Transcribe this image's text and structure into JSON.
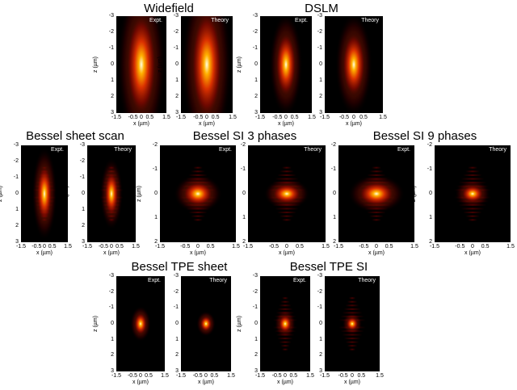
{
  "titles": {
    "widefield": "Widefield",
    "dslm": "DSLM",
    "bessel_sheet_scan": "Bessel sheet scan",
    "bessel_si_3": "Bessel SI 3 phases",
    "bessel_si_9": "Bessel SI 9 phases",
    "bessel_tpe_sheet": "Bessel TPE sheet",
    "bessel_tpe_si": "Bessel TPE SI"
  },
  "labels": {
    "expt": "Expt.",
    "theory": "Theory"
  },
  "axes": {
    "xlabel": "x (µm)",
    "ylabel": "z (µm)",
    "xticks": [
      "-1.5",
      "-0.5",
      "0",
      "0.5",
      "1.5"
    ],
    "zticks3": [
      "-3",
      "-2",
      "-1",
      "0",
      "1",
      "2",
      "3"
    ],
    "zticks2": [
      "-2",
      "-1",
      "0",
      "1",
      "2"
    ]
  },
  "chart_data": {
    "type": "heatmap",
    "colormap": [
      "#000000",
      "#7a0000",
      "#e03000",
      "#ffb000",
      "#ffffe0"
    ],
    "panels": [
      {
        "group": "Widefield",
        "label": "Expt.",
        "xlim": [
          -1.5,
          1.5
        ],
        "zlim": [
          -3,
          3
        ],
        "spot": {
          "sx": 0.45,
          "sz": 1.6
        }
      },
      {
        "group": "Widefield",
        "label": "Theory",
        "xlim": [
          -1.5,
          1.5
        ],
        "zlim": [
          -3,
          3
        ],
        "spot": {
          "sx": 0.45,
          "sz": 1.7
        }
      },
      {
        "group": "DSLM",
        "label": "Expt.",
        "xlim": [
          -1.5,
          1.5
        ],
        "zlim": [
          -3,
          3
        ],
        "spot": {
          "sx": 0.3,
          "sz": 1.0
        }
      },
      {
        "group": "DSLM",
        "label": "Theory",
        "xlim": [
          -1.5,
          1.5
        ],
        "zlim": [
          -3,
          3
        ],
        "spot": {
          "sx": 0.3,
          "sz": 1.0
        }
      },
      {
        "group": "Bessel sheet scan",
        "label": "Expt.",
        "xlim": [
          -1.5,
          1.5
        ],
        "zlim": [
          -3,
          3
        ],
        "spot": {
          "sx": 0.25,
          "sz": 0.9
        }
      },
      {
        "group": "Bessel sheet scan",
        "label": "Theory",
        "xlim": [
          -1.5,
          1.5
        ],
        "zlim": [
          -3,
          3
        ],
        "spot": {
          "sx": 0.22,
          "sz": 0.7
        }
      },
      {
        "group": "Bessel SI 3 phases",
        "label": "Expt.",
        "xlim": [
          -1.5,
          1.5
        ],
        "zlim": [
          -2,
          2
        ],
        "spot": {
          "sx": 0.3,
          "sz": 0.25
        }
      },
      {
        "group": "Bessel SI 3 phases",
        "label": "Theory",
        "xlim": [
          -1.5,
          1.5
        ],
        "zlim": [
          -2,
          2
        ],
        "spot": {
          "sx": 0.28,
          "sz": 0.2
        }
      },
      {
        "group": "Bessel SI 9 phases",
        "label": "Expt.",
        "xlim": [
          -1.5,
          1.5
        ],
        "zlim": [
          -2,
          2
        ],
        "spot": {
          "sx": 0.35,
          "sz": 0.25
        }
      },
      {
        "group": "Bessel SI 9 phases",
        "label": "Theory",
        "xlim": [
          -1.5,
          1.5
        ],
        "zlim": [
          -2,
          2
        ],
        "spot": {
          "sx": 0.22,
          "sz": 0.18
        }
      },
      {
        "group": "Bessel TPE sheet",
        "label": "Expt.",
        "xlim": [
          -1.5,
          1.5
        ],
        "zlim": [
          -3,
          3
        ],
        "spot": {
          "sx": 0.2,
          "sz": 0.35
        }
      },
      {
        "group": "Bessel TPE sheet",
        "label": "Theory",
        "xlim": [
          -1.5,
          1.5
        ],
        "zlim": [
          -3,
          3
        ],
        "spot": {
          "sx": 0.18,
          "sz": 0.25
        }
      },
      {
        "group": "Bessel TPE SI",
        "label": "Expt.",
        "xlim": [
          -1.5,
          1.5
        ],
        "zlim": [
          -3,
          3
        ],
        "spot": {
          "sx": 0.2,
          "sz": 0.28
        }
      },
      {
        "group": "Bessel TPE SI",
        "label": "Theory",
        "xlim": [
          -1.5,
          1.5
        ],
        "zlim": [
          -3,
          3
        ],
        "spot": {
          "sx": 0.17,
          "sz": 0.22
        }
      }
    ]
  }
}
